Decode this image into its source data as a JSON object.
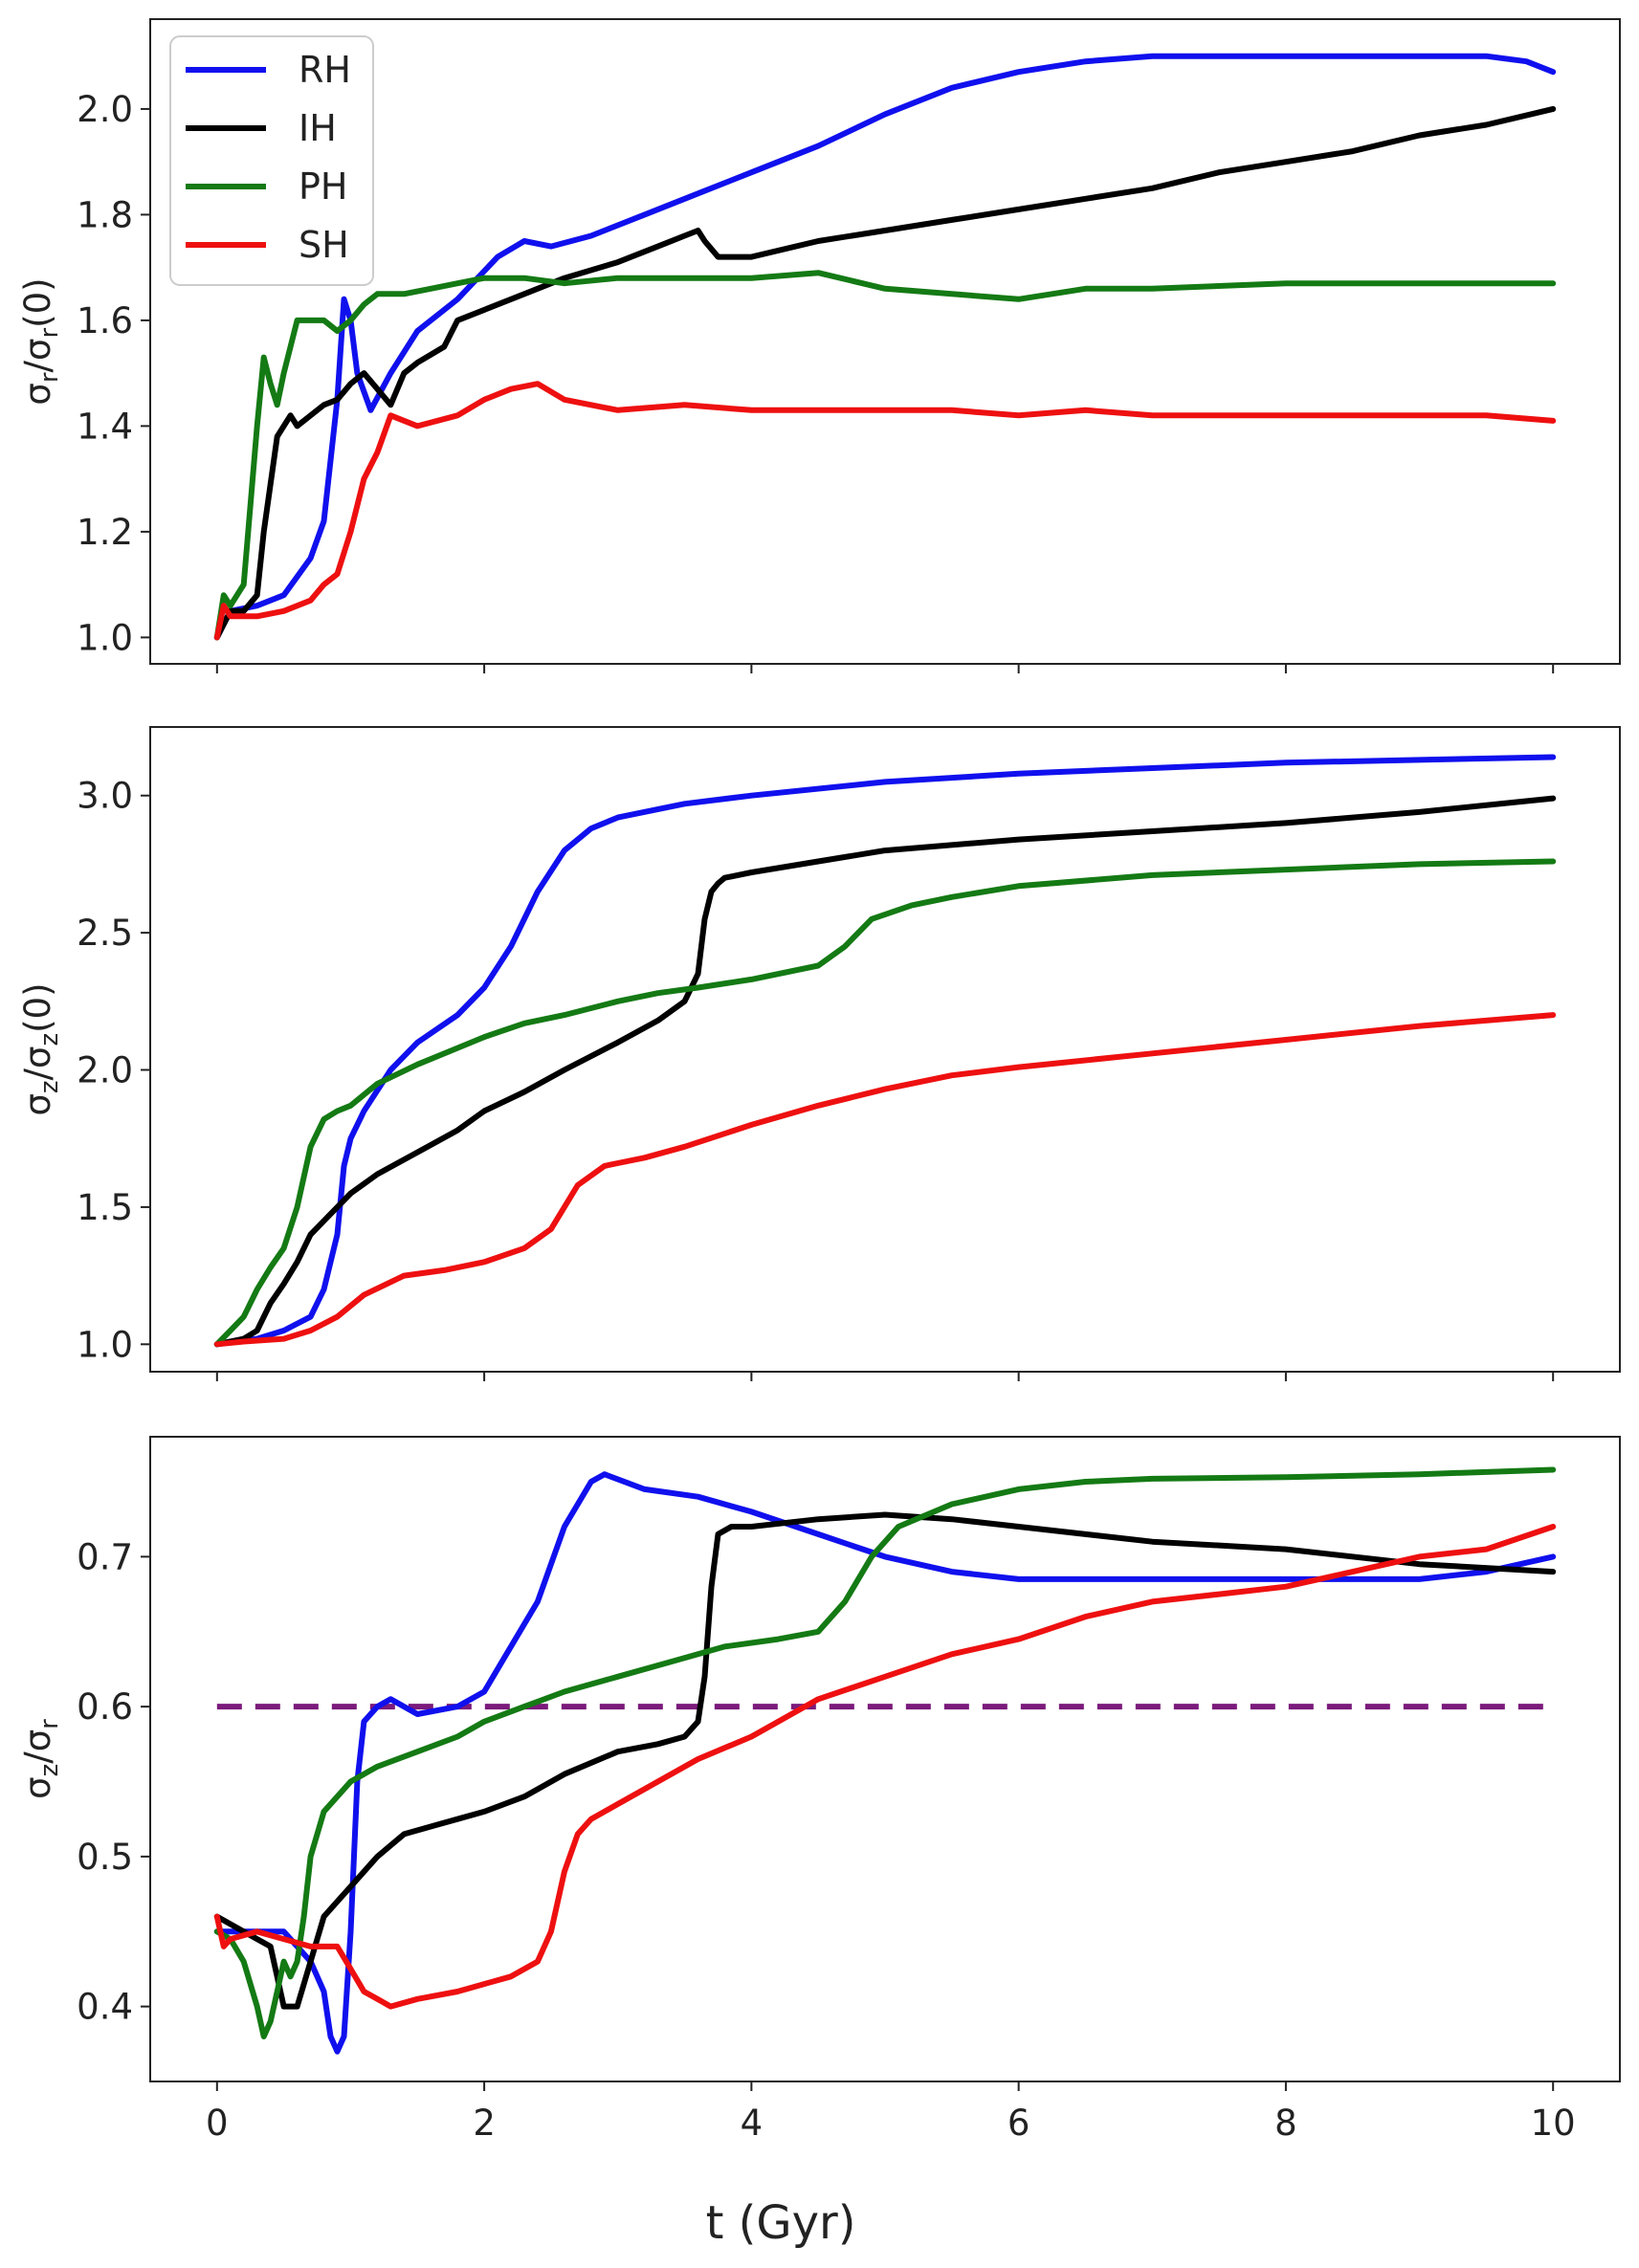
{
  "figure": {
    "xlabel": "t (Gyr)",
    "legend": {
      "placement": "top-left of top panel",
      "entries": [
        {
          "label": "RH",
          "color": "#1010ee"
        },
        {
          "label": "IH",
          "color": "#000000"
        },
        {
          "label": "PH",
          "color": "#147a14"
        },
        {
          "label": "SH",
          "color": "#ee1010"
        }
      ]
    }
  },
  "chart_data": [
    {
      "type": "line",
      "panel": "top",
      "ylabel_main": "σ",
      "ylabel_sub1": "r",
      "ylabel_mid": "/σ",
      "ylabel_sub2": "r",
      "ylabel_tail": "(0)",
      "xlim": [
        -0.5,
        10.5
      ],
      "ylim": [
        0.95,
        2.17
      ],
      "xticks": [
        0,
        2,
        4,
        6,
        8,
        10
      ],
      "xtick_labels": [],
      "yticks": [
        1.0,
        1.2,
        1.4,
        1.6,
        1.8,
        2.0
      ],
      "ytick_labels": [
        "1.0",
        "1.2",
        "1.4",
        "1.6",
        "1.8",
        "2.0"
      ],
      "series": [
        {
          "name": "RH",
          "color": "#1010ee",
          "x": [
            0,
            0.1,
            0.3,
            0.5,
            0.7,
            0.8,
            0.9,
            0.95,
            1.0,
            1.05,
            1.15,
            1.3,
            1.5,
            1.8,
            2.1,
            2.3,
            2.5,
            2.8,
            3.2,
            3.6,
            4.0,
            4.5,
            5.0,
            5.5,
            6.0,
            6.5,
            7.0,
            7.5,
            8.0,
            8.5,
            9.0,
            9.5,
            9.8,
            10.0
          ],
          "values": [
            1.0,
            1.05,
            1.06,
            1.08,
            1.15,
            1.22,
            1.45,
            1.64,
            1.6,
            1.5,
            1.43,
            1.5,
            1.58,
            1.64,
            1.72,
            1.75,
            1.74,
            1.76,
            1.8,
            1.84,
            1.88,
            1.93,
            1.99,
            2.04,
            2.07,
            2.09,
            2.1,
            2.1,
            2.1,
            2.1,
            2.1,
            2.1,
            2.09,
            2.07
          ]
        },
        {
          "name": "IH",
          "color": "#000000",
          "x": [
            0,
            0.1,
            0.2,
            0.3,
            0.35,
            0.45,
            0.55,
            0.6,
            0.7,
            0.8,
            0.9,
            1.0,
            1.1,
            1.2,
            1.3,
            1.4,
            1.5,
            1.7,
            1.8,
            2.0,
            2.3,
            2.6,
            3.0,
            3.3,
            3.5,
            3.6,
            3.65,
            3.75,
            4.0,
            4.5,
            5.0,
            5.5,
            6.0,
            6.5,
            7.0,
            7.5,
            8.0,
            8.5,
            9.0,
            9.5,
            10.0
          ],
          "values": [
            1.0,
            1.05,
            1.05,
            1.08,
            1.2,
            1.38,
            1.42,
            1.4,
            1.42,
            1.44,
            1.45,
            1.48,
            1.5,
            1.47,
            1.44,
            1.5,
            1.52,
            1.55,
            1.6,
            1.62,
            1.65,
            1.68,
            1.71,
            1.74,
            1.76,
            1.77,
            1.75,
            1.72,
            1.72,
            1.75,
            1.77,
            1.79,
            1.81,
            1.83,
            1.85,
            1.88,
            1.9,
            1.92,
            1.95,
            1.97,
            2.0
          ]
        },
        {
          "name": "PH",
          "color": "#147a14",
          "x": [
            0,
            0.05,
            0.1,
            0.2,
            0.3,
            0.35,
            0.4,
            0.45,
            0.5,
            0.6,
            0.7,
            0.8,
            0.9,
            1.0,
            1.1,
            1.2,
            1.4,
            1.6,
            1.8,
            2.0,
            2.3,
            2.6,
            3.0,
            3.5,
            4.0,
            4.5,
            5.0,
            5.5,
            6.0,
            6.5,
            7.0,
            8.0,
            9.0,
            10.0
          ],
          "values": [
            1.0,
            1.08,
            1.06,
            1.1,
            1.4,
            1.53,
            1.48,
            1.44,
            1.5,
            1.6,
            1.6,
            1.6,
            1.58,
            1.6,
            1.63,
            1.65,
            1.65,
            1.66,
            1.67,
            1.68,
            1.68,
            1.67,
            1.68,
            1.68,
            1.68,
            1.69,
            1.66,
            1.65,
            1.64,
            1.66,
            1.66,
            1.67,
            1.67,
            1.67
          ]
        },
        {
          "name": "SH",
          "color": "#ee1010",
          "x": [
            0,
            0.05,
            0.1,
            0.3,
            0.5,
            0.7,
            0.8,
            0.9,
            1.0,
            1.1,
            1.2,
            1.3,
            1.5,
            1.8,
            2.0,
            2.2,
            2.4,
            2.6,
            3.0,
            3.5,
            4.0,
            4.5,
            5.0,
            5.5,
            6.0,
            6.5,
            7.0,
            7.5,
            8.0,
            8.5,
            9.0,
            9.5,
            10.0
          ],
          "values": [
            1.0,
            1.06,
            1.04,
            1.04,
            1.05,
            1.07,
            1.1,
            1.12,
            1.2,
            1.3,
            1.35,
            1.42,
            1.4,
            1.42,
            1.45,
            1.47,
            1.48,
            1.45,
            1.43,
            1.44,
            1.43,
            1.43,
            1.43,
            1.43,
            1.42,
            1.43,
            1.42,
            1.42,
            1.42,
            1.42,
            1.42,
            1.42,
            1.41
          ]
        }
      ]
    },
    {
      "type": "line",
      "panel": "middle",
      "ylabel_main": "σ",
      "ylabel_sub1": "z",
      "ylabel_mid": "/σ",
      "ylabel_sub2": "z",
      "ylabel_tail": "(0)",
      "xlim": [
        -0.5,
        10.5
      ],
      "ylim": [
        0.9,
        3.25
      ],
      "xticks": [
        0,
        2,
        4,
        6,
        8,
        10
      ],
      "xtick_labels": [],
      "yticks": [
        1.0,
        1.5,
        2.0,
        2.5,
        3.0
      ],
      "ytick_labels": [
        "1.0",
        "1.5",
        "2.0",
        "2.5",
        "3.0"
      ],
      "series": [
        {
          "name": "RH",
          "color": "#1010ee",
          "x": [
            0,
            0.3,
            0.5,
            0.7,
            0.8,
            0.9,
            0.95,
            1.0,
            1.1,
            1.3,
            1.5,
            1.8,
            2.0,
            2.2,
            2.4,
            2.6,
            2.8,
            3.0,
            3.5,
            4.0,
            5.0,
            6.0,
            7.0,
            8.0,
            9.0,
            10.0
          ],
          "values": [
            1.0,
            1.02,
            1.05,
            1.1,
            1.2,
            1.4,
            1.65,
            1.75,
            1.85,
            2.0,
            2.1,
            2.2,
            2.3,
            2.45,
            2.65,
            2.8,
            2.88,
            2.92,
            2.97,
            3.0,
            3.05,
            3.08,
            3.1,
            3.12,
            3.13,
            3.14
          ]
        },
        {
          "name": "IH",
          "color": "#000000",
          "x": [
            0,
            0.2,
            0.3,
            0.4,
            0.5,
            0.6,
            0.7,
            0.8,
            1.0,
            1.2,
            1.5,
            1.8,
            2.0,
            2.3,
            2.6,
            3.0,
            3.3,
            3.5,
            3.6,
            3.65,
            3.7,
            3.75,
            3.8,
            4.0,
            4.5,
            5.0,
            6.0,
            7.0,
            8.0,
            9.0,
            10.0
          ],
          "values": [
            1.0,
            1.02,
            1.05,
            1.15,
            1.22,
            1.3,
            1.4,
            1.45,
            1.55,
            1.62,
            1.7,
            1.78,
            1.85,
            1.92,
            2.0,
            2.1,
            2.18,
            2.25,
            2.35,
            2.55,
            2.65,
            2.68,
            2.7,
            2.72,
            2.76,
            2.8,
            2.84,
            2.87,
            2.9,
            2.94,
            2.99
          ]
        },
        {
          "name": "PH",
          "color": "#147a14",
          "x": [
            0,
            0.1,
            0.2,
            0.3,
            0.4,
            0.5,
            0.6,
            0.7,
            0.8,
            0.9,
            1.0,
            1.2,
            1.5,
            1.8,
            2.0,
            2.3,
            2.6,
            3.0,
            3.3,
            3.6,
            4.0,
            4.5,
            4.7,
            4.9,
            5.2,
            5.5,
            6.0,
            7.0,
            8.0,
            9.0,
            10.0
          ],
          "values": [
            1.0,
            1.05,
            1.1,
            1.2,
            1.28,
            1.35,
            1.5,
            1.72,
            1.82,
            1.85,
            1.87,
            1.95,
            2.02,
            2.08,
            2.12,
            2.17,
            2.2,
            2.25,
            2.28,
            2.3,
            2.33,
            2.38,
            2.45,
            2.55,
            2.6,
            2.63,
            2.67,
            2.71,
            2.73,
            2.75,
            2.76
          ]
        },
        {
          "name": "SH",
          "color": "#ee1010",
          "x": [
            0,
            0.2,
            0.5,
            0.7,
            0.9,
            1.1,
            1.4,
            1.7,
            2.0,
            2.3,
            2.5,
            2.7,
            2.9,
            3.0,
            3.2,
            3.5,
            4.0,
            4.5,
            5.0,
            5.5,
            6.0,
            7.0,
            8.0,
            9.0,
            10.0
          ],
          "values": [
            1.0,
            1.01,
            1.02,
            1.05,
            1.1,
            1.18,
            1.25,
            1.27,
            1.3,
            1.35,
            1.42,
            1.58,
            1.65,
            1.66,
            1.68,
            1.72,
            1.8,
            1.87,
            1.93,
            1.98,
            2.01,
            2.06,
            2.11,
            2.16,
            2.2
          ]
        }
      ]
    },
    {
      "type": "line",
      "panel": "bottom",
      "ylabel_main": "σ",
      "ylabel_sub1": "z",
      "ylabel_mid": "/σ",
      "ylabel_sub2": "r",
      "ylabel_tail": "",
      "xlim": [
        -0.5,
        10.5
      ],
      "ylim": [
        0.35,
        0.78
      ],
      "xticks": [
        0,
        2,
        4,
        6,
        8,
        10
      ],
      "xtick_labels": [
        "0",
        "2",
        "4",
        "6",
        "8",
        "10"
      ],
      "yticks": [
        0.4,
        0.5,
        0.6,
        0.7
      ],
      "ytick_labels": [
        "0.4",
        "0.5",
        "0.6",
        "0.7"
      ],
      "reference_line": {
        "y": 0.6,
        "color": "#7b1a7b",
        "style": "dashed"
      },
      "series": [
        {
          "name": "RH",
          "color": "#1010ee",
          "x": [
            0,
            0.3,
            0.5,
            0.6,
            0.7,
            0.8,
            0.85,
            0.9,
            0.95,
            1.0,
            1.05,
            1.1,
            1.2,
            1.3,
            1.5,
            1.8,
            2.0,
            2.2,
            2.4,
            2.6,
            2.8,
            2.9,
            3.2,
            3.6,
            4.0,
            4.5,
            5.0,
            5.5,
            6.0,
            7.0,
            8.0,
            9.0,
            9.5,
            10.0
          ],
          "values": [
            0.45,
            0.45,
            0.45,
            0.44,
            0.43,
            0.41,
            0.38,
            0.37,
            0.38,
            0.45,
            0.55,
            0.59,
            0.6,
            0.605,
            0.595,
            0.6,
            0.61,
            0.64,
            0.67,
            0.72,
            0.75,
            0.755,
            0.745,
            0.74,
            0.73,
            0.715,
            0.7,
            0.69,
            0.685,
            0.685,
            0.685,
            0.685,
            0.69,
            0.7
          ]
        },
        {
          "name": "IH",
          "color": "#000000",
          "x": [
            0,
            0.2,
            0.3,
            0.4,
            0.5,
            0.6,
            0.7,
            0.8,
            0.9,
            1.0,
            1.2,
            1.4,
            1.6,
            1.8,
            2.0,
            2.3,
            2.6,
            3.0,
            3.3,
            3.5,
            3.6,
            3.65,
            3.7,
            3.75,
            3.85,
            4.0,
            4.5,
            5.0,
            5.5,
            6.0,
            7.0,
            8.0,
            9.0,
            10.0
          ],
          "values": [
            0.46,
            0.45,
            0.445,
            0.44,
            0.4,
            0.4,
            0.43,
            0.46,
            0.47,
            0.48,
            0.5,
            0.515,
            0.52,
            0.525,
            0.53,
            0.54,
            0.555,
            0.57,
            0.575,
            0.58,
            0.59,
            0.62,
            0.68,
            0.715,
            0.72,
            0.72,
            0.725,
            0.728,
            0.725,
            0.72,
            0.71,
            0.705,
            0.695,
            0.69
          ]
        },
        {
          "name": "PH",
          "color": "#147a14",
          "x": [
            0,
            0.1,
            0.2,
            0.3,
            0.35,
            0.4,
            0.45,
            0.5,
            0.55,
            0.6,
            0.65,
            0.7,
            0.8,
            1.0,
            1.2,
            1.5,
            1.8,
            2.0,
            2.3,
            2.6,
            3.0,
            3.4,
            3.8,
            4.2,
            4.5,
            4.7,
            4.9,
            5.1,
            5.5,
            6.0,
            6.5,
            7.0,
            8.0,
            9.0,
            10.0
          ],
          "values": [
            0.45,
            0.445,
            0.43,
            0.4,
            0.38,
            0.39,
            0.41,
            0.43,
            0.42,
            0.43,
            0.46,
            0.5,
            0.53,
            0.55,
            0.56,
            0.57,
            0.58,
            0.59,
            0.6,
            0.61,
            0.62,
            0.63,
            0.64,
            0.645,
            0.65,
            0.67,
            0.7,
            0.72,
            0.735,
            0.745,
            0.75,
            0.752,
            0.753,
            0.755,
            0.758
          ]
        },
        {
          "name": "SH",
          "color": "#ee1010",
          "x": [
            0,
            0.05,
            0.1,
            0.3,
            0.5,
            0.7,
            0.9,
            1.0,
            1.1,
            1.2,
            1.3,
            1.5,
            1.8,
            2.0,
            2.2,
            2.4,
            2.5,
            2.6,
            2.7,
            2.8,
            3.0,
            3.3,
            3.6,
            4.0,
            4.5,
            5.0,
            5.5,
            6.0,
            6.5,
            7.0,
            7.5,
            8.0,
            8.5,
            9.0,
            9.5,
            10.0
          ],
          "values": [
            0.46,
            0.44,
            0.445,
            0.45,
            0.445,
            0.44,
            0.44,
            0.425,
            0.41,
            0.405,
            0.4,
            0.405,
            0.41,
            0.415,
            0.42,
            0.43,
            0.45,
            0.49,
            0.515,
            0.525,
            0.535,
            0.55,
            0.565,
            0.58,
            0.605,
            0.62,
            0.635,
            0.645,
            0.66,
            0.67,
            0.675,
            0.68,
            0.69,
            0.7,
            0.705,
            0.72
          ]
        }
      ]
    }
  ]
}
